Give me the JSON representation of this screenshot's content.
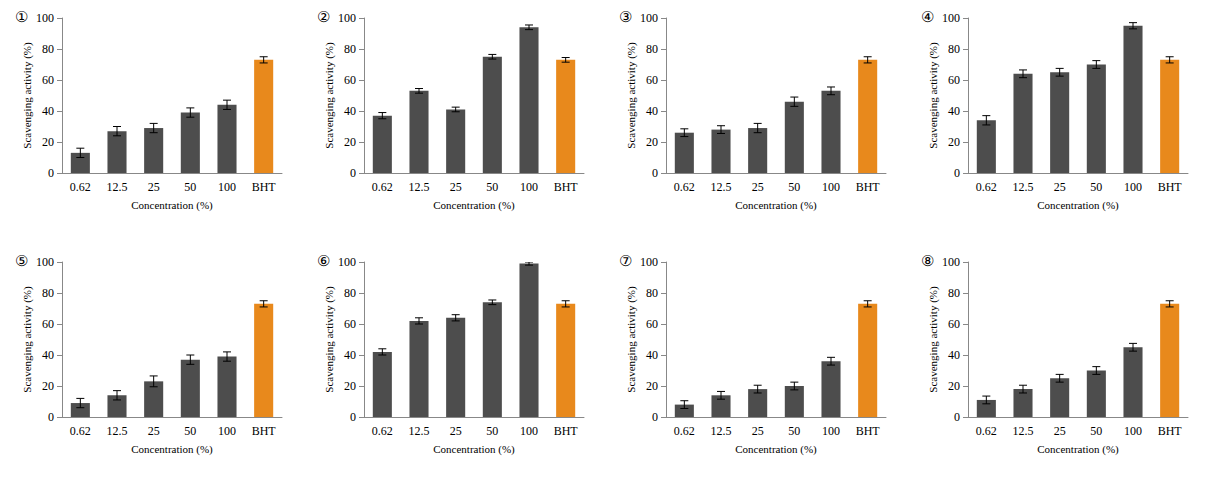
{
  "chart_data": [
    {
      "type": "bar",
      "title": "①",
      "categories": [
        "0.62",
        "12.5",
        "25",
        "50",
        "100",
        "BHT"
      ],
      "values": [
        13,
        27,
        29,
        39,
        44,
        73
      ],
      "errors": [
        3,
        3,
        3,
        3,
        3,
        2
      ],
      "colors": [
        "#4d4d4d",
        "#4d4d4d",
        "#4d4d4d",
        "#4d4d4d",
        "#4d4d4d",
        "#e8891c"
      ],
      "xlabel": "Concentration (%)",
      "ylabel": "Scavenging activity (%)",
      "ylim": [
        0,
        100
      ],
      "yticks": [
        0,
        20,
        40,
        60,
        80,
        100
      ],
      "grid": false
    },
    {
      "type": "bar",
      "title": "②",
      "categories": [
        "0.62",
        "12.5",
        "25",
        "50",
        "100",
        "BHT"
      ],
      "values": [
        37,
        53,
        41,
        75,
        94,
        73
      ],
      "errors": [
        2,
        1.5,
        1.5,
        1.5,
        1.5,
        1.5
      ],
      "colors": [
        "#4d4d4d",
        "#4d4d4d",
        "#4d4d4d",
        "#4d4d4d",
        "#4d4d4d",
        "#e8891c"
      ],
      "xlabel": "Concentration (%)",
      "ylabel": "Scavenging activity (%)",
      "ylim": [
        0,
        100
      ],
      "yticks": [
        0,
        20,
        40,
        60,
        80,
        100
      ],
      "grid": false
    },
    {
      "type": "bar",
      "title": "③",
      "categories": [
        "0.62",
        "12.5",
        "25",
        "50",
        "100",
        "BHT"
      ],
      "values": [
        26,
        28,
        29,
        46,
        53,
        73
      ],
      "errors": [
        2.5,
        2.5,
        3,
        3,
        2.5,
        2
      ],
      "colors": [
        "#4d4d4d",
        "#4d4d4d",
        "#4d4d4d",
        "#4d4d4d",
        "#4d4d4d",
        "#e8891c"
      ],
      "xlabel": "Concentration (%)",
      "ylabel": "Scavenging activity (%)",
      "ylim": [
        0,
        100
      ],
      "yticks": [
        0,
        20,
        40,
        60,
        80,
        100
      ],
      "grid": false
    },
    {
      "type": "bar",
      "title": "④",
      "categories": [
        "0.62",
        "12.5",
        "25",
        "50",
        "100",
        "BHT"
      ],
      "values": [
        34,
        64,
        65,
        70,
        95,
        73
      ],
      "errors": [
        3,
        2.5,
        2.5,
        2.5,
        2,
        2
      ],
      "colors": [
        "#4d4d4d",
        "#4d4d4d",
        "#4d4d4d",
        "#4d4d4d",
        "#4d4d4d",
        "#e8891c"
      ],
      "xlabel": "Concentration (%)",
      "ylabel": "Scavenging activity (%)",
      "ylim": [
        0,
        100
      ],
      "yticks": [
        0,
        20,
        40,
        60,
        80,
        100
      ],
      "grid": false
    },
    {
      "type": "bar",
      "title": "⑤",
      "categories": [
        "0.62",
        "12.5",
        "25",
        "50",
        "100",
        "BHT"
      ],
      "values": [
        9,
        14,
        23,
        37,
        39,
        73
      ],
      "errors": [
        3,
        3,
        3.5,
        3,
        3,
        2
      ],
      "colors": [
        "#4d4d4d",
        "#4d4d4d",
        "#4d4d4d",
        "#4d4d4d",
        "#4d4d4d",
        "#e8891c"
      ],
      "xlabel": "Concentration (%)",
      "ylabel": "Scavenging activity (%)",
      "ylim": [
        0,
        100
      ],
      "yticks": [
        0,
        20,
        40,
        60,
        80,
        100
      ],
      "grid": false
    },
    {
      "type": "bar",
      "title": "⑥",
      "categories": [
        "0.62",
        "12.5",
        "25",
        "50",
        "100",
        "BHT"
      ],
      "values": [
        42,
        62,
        64,
        74,
        99,
        73
      ],
      "errors": [
        2,
        2,
        2,
        1.5,
        1,
        2
      ],
      "colors": [
        "#4d4d4d",
        "#4d4d4d",
        "#4d4d4d",
        "#4d4d4d",
        "#4d4d4d",
        "#e8891c"
      ],
      "xlabel": "Concentration (%)",
      "ylabel": "Scavenging activity (%)",
      "ylim": [
        0,
        100
      ],
      "yticks": [
        0,
        20,
        40,
        60,
        80,
        100
      ],
      "grid": false
    },
    {
      "type": "bar",
      "title": "⑦",
      "categories": [
        "0.62",
        "12.5",
        "25",
        "50",
        "100",
        "BHT"
      ],
      "values": [
        8,
        14,
        18,
        20,
        36,
        73
      ],
      "errors": [
        2.5,
        2.5,
        2.5,
        2.5,
        2.5,
        2
      ],
      "colors": [
        "#4d4d4d",
        "#4d4d4d",
        "#4d4d4d",
        "#4d4d4d",
        "#4d4d4d",
        "#e8891c"
      ],
      "xlabel": "Concentration (%)",
      "ylabel": "Scavenging activity (%)",
      "ylim": [
        0,
        100
      ],
      "yticks": [
        0,
        20,
        40,
        60,
        80,
        100
      ],
      "grid": false
    },
    {
      "type": "bar",
      "title": "⑧",
      "categories": [
        "0.62",
        "12.5",
        "25",
        "50",
        "100",
        "BHT"
      ],
      "values": [
        11,
        18,
        25,
        30,
        45,
        73
      ],
      "errors": [
        2.5,
        2.5,
        2.5,
        2.5,
        2.5,
        2
      ],
      "colors": [
        "#4d4d4d",
        "#4d4d4d",
        "#4d4d4d",
        "#4d4d4d",
        "#4d4d4d",
        "#e8891c"
      ],
      "xlabel": "Concentration (%)",
      "ylabel": "Scavenging activity (%)",
      "ylim": [
        0,
        100
      ],
      "yticks": [
        0,
        20,
        40,
        60,
        80,
        100
      ],
      "grid": false
    }
  ]
}
